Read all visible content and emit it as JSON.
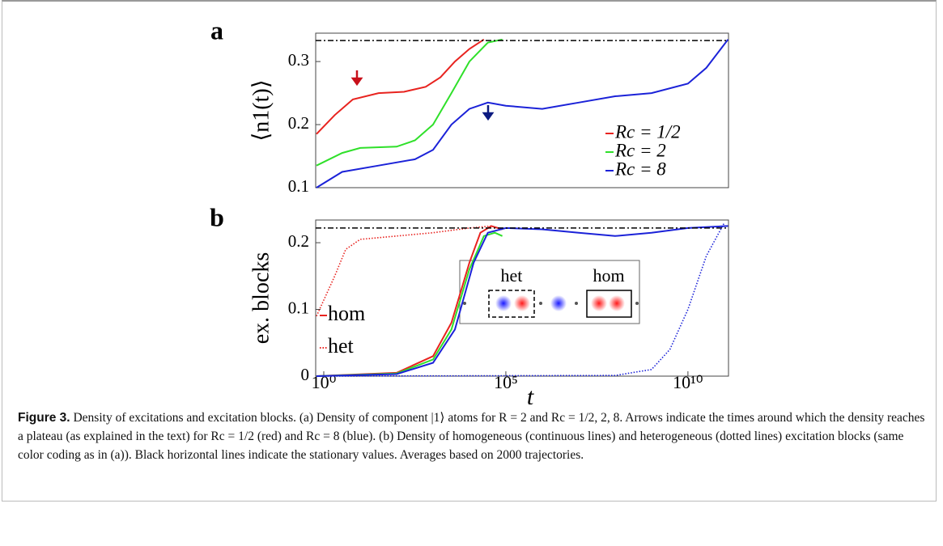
{
  "chart_data": [
    {
      "type": "line",
      "panel_label": "a",
      "y_label": "⟨n1(t)⟩",
      "xscale": "log",
      "xlim": [
        0.6,
        130000000000.0
      ],
      "ylim": [
        0.1,
        0.345
      ],
      "yticks": [
        0.1,
        0.2,
        0.3
      ],
      "hline": 0.3333,
      "series": [
        {
          "name": "Rc = 1/2",
          "color": "#e8231f",
          "style": "solid",
          "x": [
            0.63,
            2,
            6.3,
            32,
            160,
            630,
            1600,
            4000,
            10000.0,
            25000.0
          ],
          "values": [
            0.185,
            0.215,
            0.24,
            0.25,
            0.252,
            0.26,
            0.275,
            0.3,
            0.32,
            0.335
          ]
        },
        {
          "name": "Rc = 2",
          "color": "#2fe02a",
          "style": "solid",
          "x": [
            0.63,
            3.2,
            10,
            100,
            320,
            1000,
            3200,
            10000.0,
            32000.0,
            80000.0
          ],
          "values": [
            0.135,
            0.155,
            0.163,
            0.165,
            0.175,
            0.2,
            0.25,
            0.3,
            0.33,
            0.335
          ]
        },
        {
          "name": "Rc = 8",
          "color": "#1b22d8",
          "style": "solid",
          "x": [
            0.63,
            3.2,
            32,
            320,
            1000,
            3200,
            10000.0,
            32000.0,
            100000.0,
            1000000.0,
            10000000.0,
            100000000.0,
            1000000000.0,
            10000000000.0,
            32000000000.0,
            126000000000.0
          ],
          "values": [
            0.1,
            0.125,
            0.135,
            0.145,
            0.16,
            0.2,
            0.225,
            0.235,
            0.23,
            0.225,
            0.235,
            0.245,
            0.25,
            0.265,
            0.29,
            0.335
          ]
        }
      ]
    },
    {
      "type": "line",
      "panel_label": "b",
      "y_label": "ex. blocks",
      "x_label": "t",
      "xscale": "log",
      "xlim": [
        0.6,
        130000000000.0
      ],
      "ylim": [
        0,
        0.234
      ],
      "yticks": [
        0,
        0.1,
        0.2
      ],
      "hline": 0.222,
      "xticks": [
        {
          "value": 1,
          "label": "10⁰"
        },
        {
          "value": 100000.0,
          "label": "10⁵"
        },
        {
          "value": 10000000000.0,
          "label": "10¹⁰"
        }
      ],
      "legend": [
        {
          "name": "hom",
          "color": "#e8231f",
          "style": "solid"
        },
        {
          "name": "het",
          "color": "#e8231f",
          "style": "dotted"
        }
      ],
      "inset_labels": [
        "het",
        "hom"
      ],
      "series": [
        {
          "color": "#e8231f",
          "style": "solid",
          "x": [
            0.63,
            100,
            1000,
            3200,
            10000.0,
            20000.0,
            40000.0,
            80000.0
          ],
          "values": [
            0,
            0.005,
            0.03,
            0.08,
            0.17,
            0.215,
            0.225,
            0.22
          ]
        },
        {
          "color": "#2fe02a",
          "style": "solid",
          "x": [
            0.63,
            100,
            1000,
            3200,
            10000.0,
            25000.0,
            50000.0,
            80000.0
          ],
          "values": [
            0,
            0.004,
            0.025,
            0.07,
            0.16,
            0.21,
            0.215,
            0.21
          ]
        },
        {
          "color": "#1b22d8",
          "style": "solid",
          "x": [
            0.63,
            100,
            1000,
            4000,
            13000.0,
            32000.0,
            100000.0,
            1000000.0,
            10000000.0,
            100000000.0,
            1000000000.0,
            10000000000.0,
            126000000000.0
          ],
          "values": [
            0,
            0.003,
            0.02,
            0.07,
            0.17,
            0.215,
            0.222,
            0.22,
            0.215,
            0.21,
            0.215,
            0.222,
            0.225
          ]
        },
        {
          "color": "#e8231f",
          "style": "dotted",
          "x": [
            0.63,
            2,
            4,
            10,
            100,
            1000,
            10000.0,
            40000.0
          ],
          "values": [
            0.09,
            0.15,
            0.19,
            0.205,
            0.21,
            0.215,
            0.222,
            0.225
          ]
        },
        {
          "color": "#1b22d8",
          "style": "dotted",
          "x": [
            0.63,
            100000000.0,
            1000000000.0,
            3200000000.0,
            10000000000.0,
            32000000000.0,
            100000000000.0
          ],
          "values": [
            0,
            0.001,
            0.01,
            0.04,
            0.1,
            0.18,
            0.23
          ]
        }
      ]
    }
  ],
  "caption": {
    "label": "Figure 3.",
    "text": "Density of excitations and excitation blocks. (a) Density of component |1⟩ atoms for R = 2 and Rc = 1/2, 2, 8. Arrows indicate the times around which the density reaches a plateau (as explained in the text) for Rc = 1/2 (red) and Rc = 8 (blue). (b) Density of homogeneous (continuous lines) and heterogeneous (dotted lines) excitation blocks (same color coding as in (a)). Black horizontal lines indicate the stationary values. Averages based on 2000 trajectories."
  }
}
